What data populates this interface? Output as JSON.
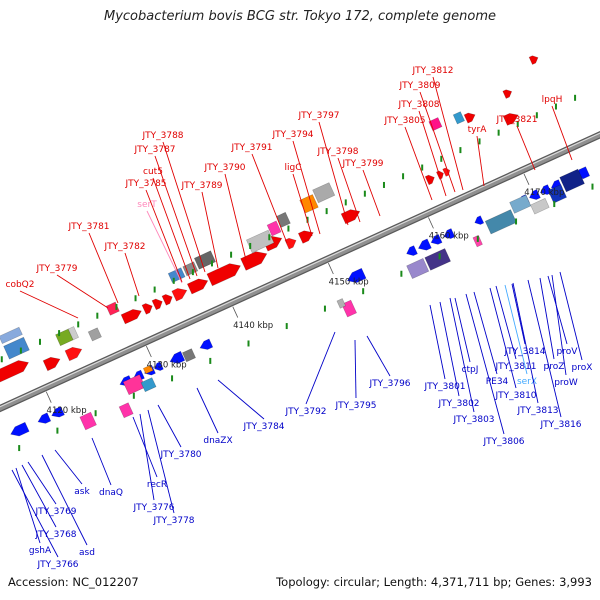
{
  "title": "Mycobacterium bovis BCG str. Tokyo 172, complete genome",
  "footer": {
    "accession": "Accession: NC_012207",
    "summary": "Topology: circular; Length: 4,371,711 bp; Genes: 3,993"
  },
  "colors": {
    "forward_label": "#e00000",
    "reverse_label": "#0000c8",
    "rna_label": "#ff88bb",
    "rna_label_reverse": "#44aaff",
    "backbone": "#909090",
    "tick": "#1a8a1a"
  },
  "ticks": [
    "4120 kbp",
    "4130 kbp",
    "4140 kbp",
    "4150 kbp",
    "4160 kbp",
    "4170 kbp"
  ],
  "labels": [
    "cobQ2",
    "JTY_3779",
    "JTY_3781",
    "JTY_3782",
    "serT",
    "JTY_3785",
    "cut5",
    "JTY_3787",
    "JTY_3788",
    "JTY_3789",
    "JTY_3790",
    "JTY_3791",
    "JTY_3794",
    "ligC",
    "JTY_3797",
    "JTY_3798",
    "JTY_3799",
    "JTY_3805",
    "JTY_3808",
    "JTY_3809",
    "JTY_3812",
    "tyrA",
    "JTY_3821",
    "lpqH",
    "JTY_3766",
    "gshA",
    "JTY_3768",
    "JTY_3769",
    "asd",
    "ask",
    "dnaQ",
    "recR",
    "JTY_3776",
    "JTY_3778",
    "JTY_3780",
    "dnaZX",
    "JTY_3784",
    "JTY_3792",
    "JTY_3795",
    "JTY_3796",
    "JTY_3801",
    "JTY_3802",
    "JTY_3803",
    "ctpJ",
    "PE34",
    "JTY_3806",
    "JTY_3810",
    "JTY_3811",
    "serX",
    "JTY_3813",
    "JTY_3814",
    "JTY_3816",
    "proV",
    "proZ",
    "proW",
    "proX"
  ]
}
